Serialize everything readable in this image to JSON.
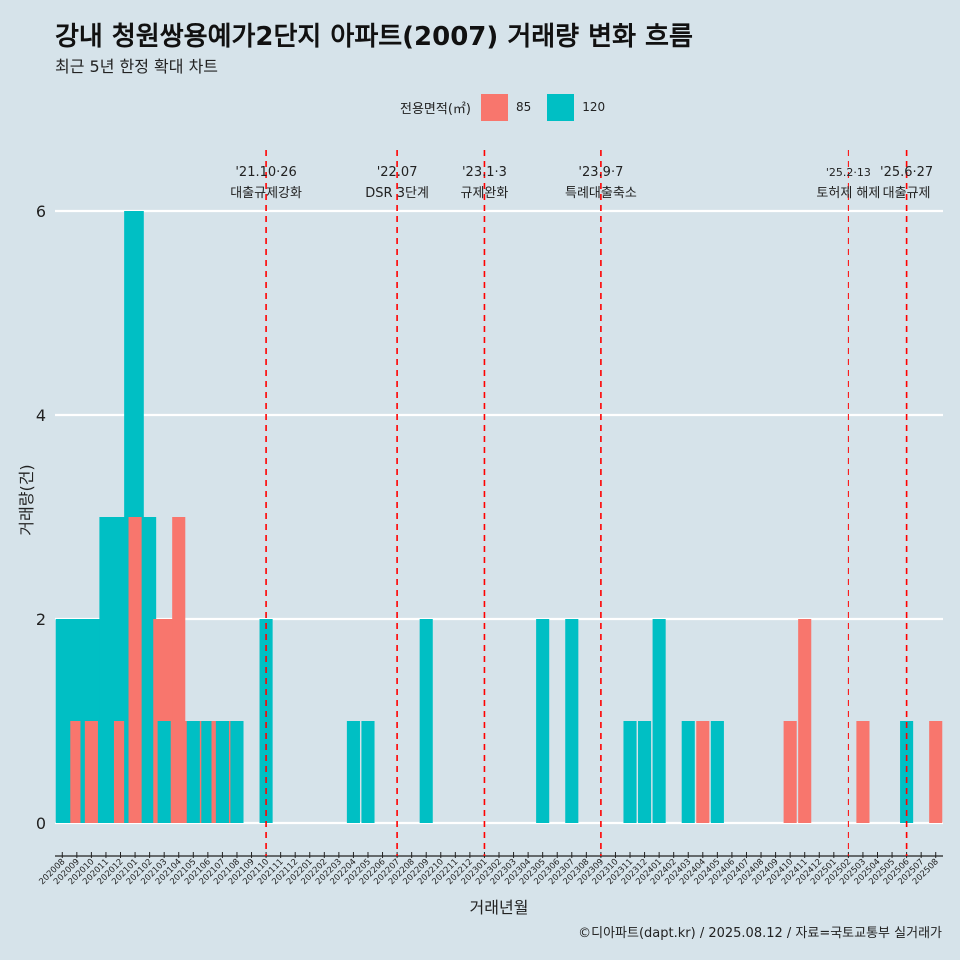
{
  "title": "강내 청원쌍용예가2단지 아파트(2007) 거래량 변화 흐름",
  "subtitle": "최근 5년 한정 확대 차트",
  "legend": {
    "title": "전용면적(㎡)",
    "items": [
      {
        "label": "85",
        "color": "#f8766d"
      },
      {
        "label": "120",
        "color": "#00bfc4"
      }
    ]
  },
  "caption": "©디아파트(dapt.kr) / 2025.08.12 / 자료=국토교통부 실거래가",
  "colors": {
    "background": "#d6e3ea",
    "grid": "#ffffff",
    "event_line": "#ff0000",
    "series_85": "#f8766d",
    "series_120": "#00bfc4"
  },
  "chart_data": {
    "type": "bar",
    "title": "강내 청원쌍용예가2단지 아파트(2007) 거래량 변화 흐름",
    "xlabel": "거래년월",
    "ylabel": "거래량(건)",
    "ylim": [
      0,
      6
    ],
    "yticks": [
      0,
      2,
      4,
      6
    ],
    "grid": true,
    "legend_position": "top",
    "categories": [
      "202008",
      "202009",
      "202010",
      "202011",
      "202012",
      "202101",
      "202102",
      "202103",
      "202104",
      "202105",
      "202106",
      "202107",
      "202108",
      "202109",
      "202110",
      "202111",
      "202112",
      "202201",
      "202202",
      "202203",
      "202204",
      "202205",
      "202206",
      "202207",
      "202208",
      "202209",
      "202210",
      "202211",
      "202212",
      "202301",
      "202302",
      "202303",
      "202304",
      "202305",
      "202306",
      "202307",
      "202308",
      "202309",
      "202310",
      "202311",
      "202312",
      "202401",
      "202402",
      "202403",
      "202404",
      "202405",
      "202406",
      "202407",
      "202408",
      "202409",
      "202410",
      "202411",
      "202412",
      "202501",
      "202502",
      "202503",
      "202504",
      "202505",
      "202506",
      "202507",
      "202508"
    ],
    "series": [
      {
        "name": "85",
        "color": "#f8766d",
        "values": [
          0,
          1,
          1,
          0,
          1,
          3,
          0,
          2,
          3,
          1,
          0,
          1,
          0,
          0,
          0,
          0,
          0,
          0,
          0,
          0,
          0,
          0,
          0,
          0,
          0,
          0,
          0,
          0,
          0,
          0,
          0,
          0,
          0,
          0,
          0,
          0,
          0,
          0,
          0,
          0,
          0,
          0,
          0,
          0,
          1,
          0,
          0,
          0,
          0,
          0,
          1,
          2,
          0,
          0,
          0,
          1,
          0,
          0,
          0,
          0,
          1
        ]
      },
      {
        "name": "120",
        "color": "#00bfc4",
        "values": [
          2,
          2,
          2,
          3,
          3,
          6,
          3,
          1,
          0,
          1,
          1,
          1,
          1,
          0,
          2,
          0,
          0,
          0,
          0,
          0,
          1,
          1,
          0,
          0,
          0,
          2,
          0,
          0,
          0,
          0,
          0,
          0,
          0,
          2,
          0,
          2,
          0,
          0,
          0,
          1,
          1,
          2,
          0,
          1,
          0,
          1,
          0,
          0,
          0,
          0,
          0,
          0,
          0,
          0,
          0,
          0,
          0,
          0,
          1,
          0,
          0
        ]
      }
    ],
    "events": [
      {
        "date": "'21.10·26",
        "label": "대출규제강화",
        "after": "202110",
        "style": "dashed"
      },
      {
        "date": "'22.07",
        "label": "DSR 3단계",
        "after": "202207",
        "style": "dashed"
      },
      {
        "date": "'23.1·3",
        "label": "규제완화",
        "after": "202301",
        "style": "dashed"
      },
      {
        "date": "'23.9·7",
        "label": "특례대출축소",
        "after": "202309",
        "style": "dashed"
      },
      {
        "date": "'25.2·13",
        "label": "토허제 해제",
        "after": "202502",
        "style": "thin-dashed"
      },
      {
        "date": "'25.6·27",
        "label": "대출규제",
        "after": "202506",
        "style": "dashed"
      }
    ]
  }
}
